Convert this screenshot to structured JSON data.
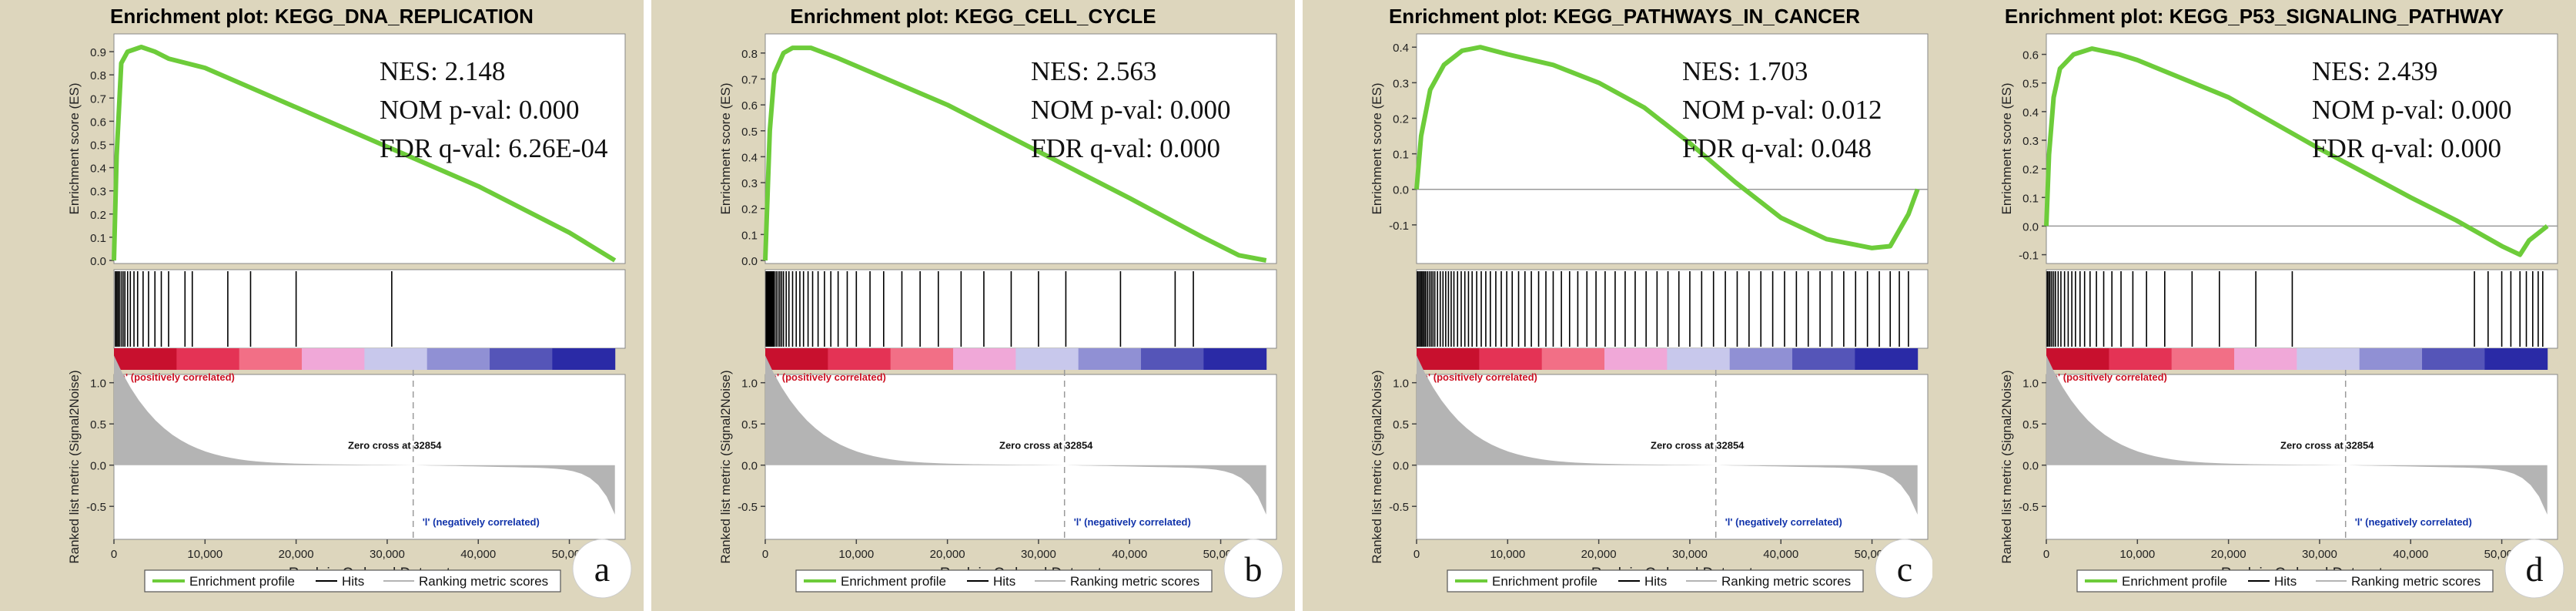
{
  "colors": {
    "panel_bg": "#ddd6bd",
    "plot_bg": "#ffffff",
    "curve": "#6dcc3a",
    "hits": "#000000",
    "metric": "#b4b4b4",
    "pos_label": "#cc1122",
    "neg_label": "#1133aa",
    "zero_line": "#9a9a9a",
    "heat": [
      "#c8102e",
      "#e43355",
      "#f26f86",
      "#f0a8d8",
      "#c8c8ec",
      "#9090d4",
      "#5555b8",
      "#2a2aa6"
    ]
  },
  "legend": {
    "profile": "Enrichment profile",
    "hits": "Hits",
    "metric": "Ranking metric scores"
  },
  "axes": {
    "es_ylabel": "Enrichment score (ES)",
    "metric_ylabel": "Ranked list metric (Signal2Noise)",
    "xlabel": "Rank in Ordered Dataset",
    "x_ticks": [
      "0",
      "10,000",
      "20,000",
      "30,000",
      "40,000",
      "50,000"
    ],
    "metric_ticks": [
      "1.0",
      "0.5",
      "0.0",
      "-0.5"
    ],
    "pos_label": "'h' (positively correlated)",
    "neg_label": "'l' (negatively correlated)",
    "zero_cross": "Zero cross at 32854"
  },
  "chart_data": [
    {
      "type": "line",
      "panel_label": "a",
      "title": "Enrichment plot: KEGG_DNA_REPLICATION",
      "stats": {
        "nes": "NES: 2.148",
        "pval": "NOM p-val: 0.000",
        "fdr": "FDR q-val: 6.26E-04"
      },
      "xlim": [
        0,
        55000
      ],
      "ylim": [
        0,
        0.95
      ],
      "y_ticks": [
        "0.0",
        "0.1",
        "0.2",
        "0.3",
        "0.4",
        "0.5",
        "0.6",
        "0.7",
        "0.8",
        "0.9"
      ],
      "x": [
        0,
        300,
        800,
        1500,
        3000,
        4500,
        6000,
        8000,
        10000,
        20000,
        30000,
        40000,
        50000,
        55000
      ],
      "es": [
        0,
        0.45,
        0.85,
        0.9,
        0.92,
        0.9,
        0.87,
        0.85,
        0.83,
        0.66,
        0.49,
        0.32,
        0.12,
        0
      ],
      "hits": [
        150,
        300,
        450,
        600,
        800,
        1000,
        1200,
        1500,
        1800,
        2200,
        2600,
        3200,
        3800,
        4500,
        5200,
        6000,
        7800,
        8600,
        12500,
        15000,
        20000,
        30500
      ]
    },
    {
      "type": "line",
      "panel_label": "b",
      "title": "Enrichment plot: KEGG_CELL_CYCLE",
      "stats": {
        "nes": "NES: 2.563",
        "pval": "NOM p-val: 0.000",
        "fdr": "FDR q-val: 0.000"
      },
      "xlim": [
        0,
        55000
      ],
      "ylim": [
        0,
        0.85
      ],
      "y_ticks": [
        "0.0",
        "0.1",
        "0.2",
        "0.3",
        "0.4",
        "0.5",
        "0.6",
        "0.7",
        "0.8"
      ],
      "x": [
        0,
        500,
        1000,
        2000,
        3000,
        5000,
        8000,
        10000,
        20000,
        30000,
        40000,
        48000,
        52000,
        55000
      ],
      "es": [
        0,
        0.5,
        0.72,
        0.8,
        0.82,
        0.82,
        0.78,
        0.75,
        0.6,
        0.42,
        0.24,
        0.09,
        0.02,
        0
      ],
      "hits": [
        100,
        200,
        300,
        400,
        500,
        600,
        700,
        800,
        900,
        1000,
        1200,
        1400,
        1600,
        1800,
        2000,
        2300,
        2600,
        3000,
        3400,
        3800,
        4200,
        4700,
        5200,
        5800,
        6500,
        7200,
        8000,
        9000,
        10000,
        11500,
        13000,
        15000,
        17000,
        19000,
        21500,
        24000,
        27000,
        30000,
        33000,
        39000,
        45000,
        47000
      ]
    },
    {
      "type": "line",
      "panel_label": "c",
      "title": "Enrichment plot: KEGG_PATHWAYS_IN_CANCER",
      "stats": {
        "nes": "NES: 1.703",
        "pval": "NOM p-val: 0.012",
        "fdr": "FDR q-val: 0.048"
      },
      "xlim": [
        0,
        55000
      ],
      "ylim": [
        -0.2,
        0.42
      ],
      "y_ticks": [
        "-0.1",
        "0.0",
        "0.1",
        "0.2",
        "0.3",
        "0.4"
      ],
      "x": [
        0,
        500,
        1500,
        3000,
        5000,
        7000,
        10000,
        15000,
        20000,
        25000,
        30000,
        35000,
        40000,
        45000,
        50000,
        52000,
        54000,
        55000
      ],
      "es": [
        0,
        0.15,
        0.28,
        0.35,
        0.39,
        0.4,
        0.38,
        0.35,
        0.3,
        0.23,
        0.13,
        0.02,
        -0.08,
        -0.14,
        -0.165,
        -0.16,
        -0.07,
        0
      ],
      "hits": [
        100,
        250,
        400,
        550,
        700,
        850,
        1000,
        1200,
        1400,
        1600,
        1800,
        2000,
        2300,
        2600,
        2900,
        3200,
        3500,
        3800,
        4100,
        4500,
        4900,
        5300,
        5700,
        6100,
        6600,
        7100,
        7600,
        8100,
        8700,
        9300,
        9900,
        10500,
        11200,
        11900,
        12600,
        13400,
        14200,
        15000,
        15900,
        16800,
        17700,
        18700,
        19700,
        20700,
        21800,
        22900,
        24000,
        25200,
        26400,
        27600,
        28800,
        30000,
        31300,
        32600,
        33900,
        35200,
        36500,
        37800,
        39100,
        40400,
        41700,
        43000,
        44300,
        45600,
        46900,
        48200,
        49500,
        50800,
        52000,
        53000,
        54000
      ]
    },
    {
      "type": "line",
      "panel_label": "d",
      "title": "Enrichment plot: KEGG_P53_SIGNALING_PATHWAY",
      "stats": {
        "nes": "NES: 2.439",
        "pval": "NOM p-val: 0.000",
        "fdr": "FDR q-val: 0.000"
      },
      "xlim": [
        0,
        55000
      ],
      "ylim": [
        -0.12,
        0.65
      ],
      "y_ticks": [
        "-0.1",
        "0.0",
        "0.1",
        "0.2",
        "0.3",
        "0.4",
        "0.5",
        "0.6"
      ],
      "x": [
        0,
        300,
        800,
        1500,
        3000,
        5000,
        8000,
        10000,
        20000,
        30000,
        40000,
        45000,
        50000,
        52000,
        53000,
        55000
      ],
      "es": [
        0,
        0.25,
        0.45,
        0.55,
        0.6,
        0.62,
        0.6,
        0.58,
        0.45,
        0.27,
        0.1,
        0.02,
        -0.07,
        -0.1,
        -0.05,
        0
      ],
      "hits": [
        100,
        250,
        400,
        600,
        800,
        1000,
        1300,
        1600,
        2000,
        2400,
        2800,
        3200,
        3700,
        4200,
        4800,
        5500,
        6300,
        7200,
        8200,
        9500,
        11000,
        13000,
        16000,
        19000,
        23000,
        27000,
        47000,
        48500,
        50000,
        51000,
        52000,
        52700,
        53400,
        54000,
        54500
      ]
    }
  ]
}
